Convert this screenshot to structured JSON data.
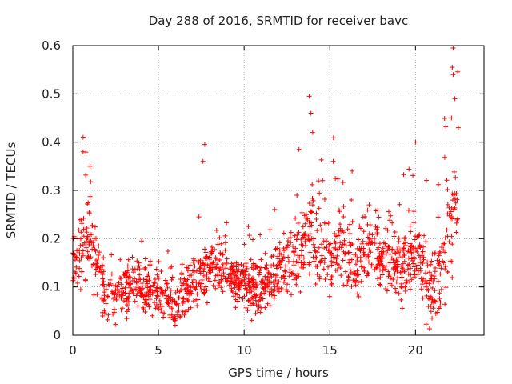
{
  "chart_data": {
    "type": "scatter",
    "title": "Day 288 of 2016, SRMTID for receiver bavc",
    "xlabel": "GPS time / hours",
    "ylabel": "SRMTID / TECUs",
    "xlim": [
      0,
      24
    ],
    "ylim": [
      0,
      0.6
    ],
    "xticks": [
      0,
      5,
      10,
      15,
      20
    ],
    "yticks": [
      0,
      0.1,
      0.2,
      0.3,
      0.4,
      0.5,
      0.6
    ],
    "xtick_labels": [
      "0",
      "5",
      "10",
      "15",
      "20"
    ],
    "ytick_labels": [
      "0",
      "0.1",
      "0.2",
      "0.3",
      "0.4",
      "0.5",
      "0.6"
    ],
    "grid": true,
    "marker": "+",
    "series_color": "#ff0000",
    "x_range_observed": [
      0,
      22.5
    ],
    "trend": {
      "x": [
        0,
        0.5,
        1,
        1.5,
        2,
        2.5,
        3,
        3.5,
        4,
        4.5,
        5,
        5.5,
        6,
        6.5,
        7,
        7.5,
        8,
        8.5,
        9,
        9.5,
        10,
        10.5,
        11,
        11.5,
        12,
        12.5,
        13,
        13.5,
        14,
        14.5,
        15,
        15.5,
        16,
        16.5,
        17,
        17.5,
        18,
        18.5,
        19,
        19.5,
        20,
        20.5,
        21,
        21.5,
        22,
        22.5
      ],
      "y": [
        0.16,
        0.18,
        0.2,
        0.14,
        0.07,
        0.08,
        0.09,
        0.11,
        0.1,
        0.09,
        0.08,
        0.07,
        0.06,
        0.09,
        0.1,
        0.13,
        0.14,
        0.14,
        0.13,
        0.11,
        0.1,
        0.1,
        0.1,
        0.11,
        0.13,
        0.14,
        0.16,
        0.18,
        0.22,
        0.19,
        0.16,
        0.19,
        0.17,
        0.15,
        0.17,
        0.18,
        0.16,
        0.15,
        0.15,
        0.16,
        0.16,
        0.13,
        0.09,
        0.15,
        0.26,
        0.25
      ]
    },
    "spread": {
      "x": [
        0,
        1,
        2,
        3,
        4,
        5,
        6,
        7,
        8,
        9,
        10,
        11,
        12,
        13,
        14,
        15,
        16,
        17,
        18,
        19,
        20,
        21,
        22,
        22.5
      ],
      "y": [
        0.06,
        0.08,
        0.05,
        0.05,
        0.05,
        0.04,
        0.05,
        0.05,
        0.05,
        0.05,
        0.05,
        0.05,
        0.05,
        0.07,
        0.09,
        0.08,
        0.07,
        0.06,
        0.06,
        0.06,
        0.07,
        0.08,
        0.12,
        0.1
      ]
    },
    "point_count": 1500,
    "notable_points": [
      {
        "x": 0.6,
        "y": 0.41
      },
      {
        "x": 0.6,
        "y": 0.38
      },
      {
        "x": 1.0,
        "y": 0.35
      },
      {
        "x": 7.7,
        "y": 0.395
      },
      {
        "x": 7.6,
        "y": 0.36
      },
      {
        "x": 13.8,
        "y": 0.495
      },
      {
        "x": 13.9,
        "y": 0.46
      },
      {
        "x": 14.0,
        "y": 0.42
      },
      {
        "x": 13.2,
        "y": 0.385
      },
      {
        "x": 15.2,
        "y": 0.36
      },
      {
        "x": 16.3,
        "y": 0.34
      },
      {
        "x": 20.0,
        "y": 0.4
      },
      {
        "x": 22.2,
        "y": 0.595
      },
      {
        "x": 22.15,
        "y": 0.555
      },
      {
        "x": 22.2,
        "y": 0.54
      },
      {
        "x": 22.3,
        "y": 0.49
      },
      {
        "x": 22.1,
        "y": 0.45
      },
      {
        "x": 22.5,
        "y": 0.43
      }
    ]
  }
}
